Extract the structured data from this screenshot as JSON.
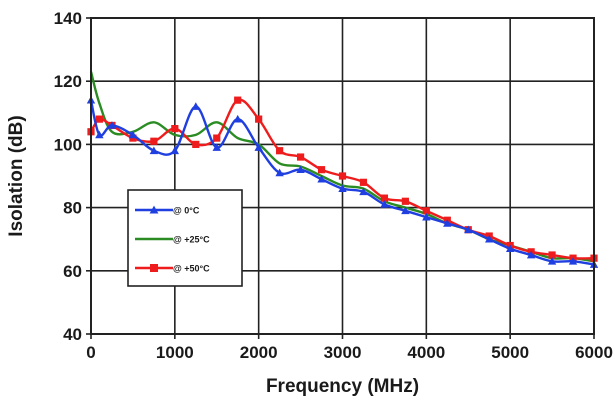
{
  "chart_data": {
    "type": "line",
    "title": "",
    "xlabel": "Frequency (MHz)",
    "ylabel": "Isolation (dB)",
    "xlim": [
      0,
      6000
    ],
    "ylim": [
      40,
      140
    ],
    "xticks": [
      0,
      1000,
      2000,
      3000,
      4000,
      5000,
      6000
    ],
    "yticks": [
      40,
      60,
      80,
      100,
      120,
      140
    ],
    "xtick_labels": [
      "0",
      "1000",
      "2000",
      "3000",
      "4000",
      "5000",
      "6000"
    ],
    "ytick_labels": [
      "40",
      "60",
      "80",
      "100",
      "120",
      "140"
    ],
    "grid": true,
    "legend_position": "left-middle",
    "series": [
      {
        "name": "@ 0°C",
        "color": "#1f3fe0",
        "marker": "triangle",
        "x": [
          0,
          100,
          250,
          500,
          750,
          1000,
          1250,
          1500,
          1750,
          2000,
          2250,
          2500,
          2750,
          3000,
          3250,
          3500,
          3750,
          4000,
          4250,
          4500,
          4750,
          5000,
          5250,
          5500,
          5750,
          6000
        ],
        "y": [
          114,
          103,
          106,
          103,
          98,
          98,
          112,
          99,
          108,
          99,
          91,
          92,
          89,
          86,
          85,
          81,
          79,
          77,
          75,
          73,
          70,
          67,
          65,
          63,
          63,
          62
        ]
      },
      {
        "name": "@ +25°C",
        "color": "#2a8c22",
        "marker": "none",
        "x": [
          0,
          100,
          250,
          500,
          750,
          1000,
          1250,
          1500,
          1750,
          2000,
          2250,
          2500,
          2750,
          3000,
          3250,
          3500,
          3750,
          4000,
          4250,
          4500,
          4750,
          5000,
          5250,
          5500,
          5750,
          6000
        ],
        "y": [
          123,
          113,
          104,
          104,
          107,
          103,
          103,
          107,
          102,
          100,
          94,
          93,
          90,
          87,
          86,
          82,
          80,
          78,
          75,
          73,
          70,
          68,
          66,
          64,
          64,
          63
        ]
      },
      {
        "name": "@ +50°C",
        "color": "#ee1c1c",
        "marker": "square",
        "x": [
          0,
          100,
          250,
          500,
          750,
          1000,
          1250,
          1500,
          1750,
          2000,
          2250,
          2500,
          2750,
          3000,
          3250,
          3500,
          3750,
          4000,
          4250,
          4500,
          4750,
          5000,
          5250,
          5500,
          5750,
          6000
        ],
        "y": [
          104,
          108,
          106,
          102,
          101,
          105,
          100,
          102,
          114,
          108,
          98,
          96,
          92,
          90,
          88,
          83,
          82,
          79,
          76,
          73,
          71,
          68,
          66,
          65,
          64,
          64
        ]
      }
    ]
  }
}
